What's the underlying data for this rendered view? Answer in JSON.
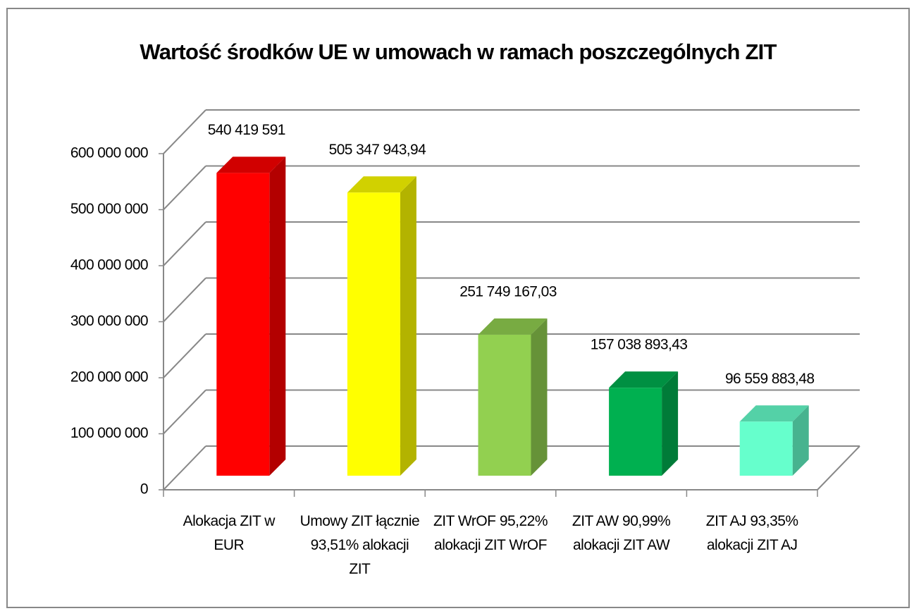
{
  "chart_data": {
    "type": "bar3d",
    "title": "Wartość środków UE w umowach w ramach poszczególnych ZIT",
    "categories": [
      "Alokacja ZIT w EUR",
      "Umowy ZIT łącznie 93,51% alokacji ZIT",
      "ZIT WrOF 95,22% alokacji ZIT WrOF",
      "ZIT AW 90,99% alokacji ZIT AW",
      "ZIT AJ 93,35% alokacji ZIT AJ"
    ],
    "values": [
      540419591,
      505347943.94,
      251749167.03,
      157038893.43,
      96559883.48
    ],
    "value_labels": [
      "540 419 591",
      "505 347 943,94",
      "251 749 167,03",
      "157 038 893,43",
      "96 559 883,48"
    ],
    "colors": [
      "#ff0000",
      "#ffff00",
      "#92d050",
      "#00b050",
      "#66ffcc"
    ],
    "ylim": [
      0,
      600000000
    ],
    "yticks": [
      0,
      {
        "value": 100000000,
        "label": "100 000 000"
      },
      {
        "value": 200000000,
        "label": "200 000 000"
      },
      {
        "value": 300000000,
        "label": "300 000 000"
      },
      {
        "value": 400000000,
        "label": "400 000 000"
      },
      {
        "value": 500000000,
        "label": "500 000 000"
      },
      {
        "value": 600000000,
        "label": "600 000 000"
      }
    ],
    "grid": true
  }
}
